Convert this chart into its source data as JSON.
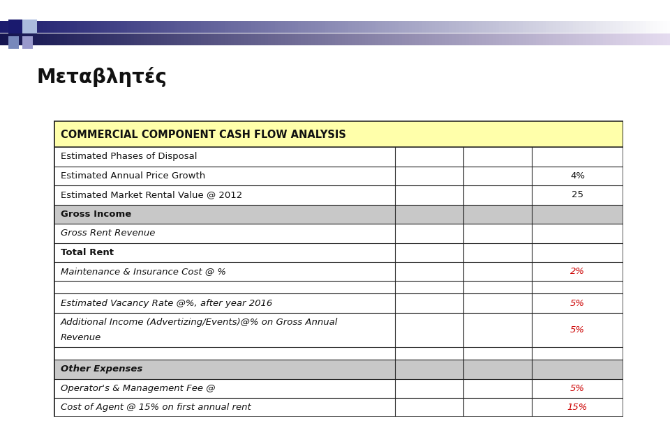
{
  "title": "Μεταβλητές",
  "header": "COMMERCIAL COMPONENT CASH FLOW ANALYSIS",
  "rows": [
    {
      "label": "Estimated Phases of Disposal",
      "value": "",
      "style": "normal",
      "col_split": false
    },
    {
      "label": "Estimated Annual Price Growth",
      "value": "4%",
      "style": "normal",
      "col_split": false
    },
    {
      "label": "Estimated Market Rental Value @ 2012",
      "value": "25",
      "style": "normal",
      "col_split": false
    },
    {
      "label": "Gross Income",
      "value": "",
      "style": "bold_gray",
      "col_split": false
    },
    {
      "label": "Gross Rent Revenue",
      "value": "",
      "style": "italic",
      "col_split": false
    },
    {
      "label": "Total Rent",
      "value": "",
      "style": "bold",
      "col_split": true
    },
    {
      "label": "Maintenance & Insurance Cost @ %",
      "value": "2%",
      "style": "italic",
      "col_split": false,
      "value_color": "#cc0000"
    },
    {
      "label": "",
      "value": "",
      "style": "normal",
      "col_split": false
    },
    {
      "label": "Estimated Vacancy Rate @%, after year 2016",
      "value": "5%",
      "style": "italic",
      "col_split": false,
      "value_color": "#cc0000"
    },
    {
      "label": "Additional Income (Advertizing/Events)@% on Gross Annual\nRevenue",
      "value": "5%",
      "style": "italic",
      "col_split": false,
      "value_color": "#cc0000"
    },
    {
      "label": "",
      "value": "",
      "style": "normal",
      "col_split": false
    },
    {
      "label": "Other Expenses",
      "value": "",
      "style": "bold_italic_gray",
      "col_split": false
    },
    {
      "label": "Operator's & Management Fee @",
      "value": "5%",
      "style": "italic",
      "col_split": false,
      "value_color": "#cc0000"
    },
    {
      "label": "Cost of Agent @ 15% on first annual rent",
      "value": "15%",
      "style": "italic",
      "col_split": false,
      "value_color": "#cc0000"
    }
  ],
  "header_bg": "#ffffaa",
  "gray_bg": "#c8c8c8",
  "white_bg": "#ffffff",
  "table_border": "#222222",
  "title_fontsize": 20,
  "header_fontsize": 10.5,
  "row_fontsize": 9.5
}
